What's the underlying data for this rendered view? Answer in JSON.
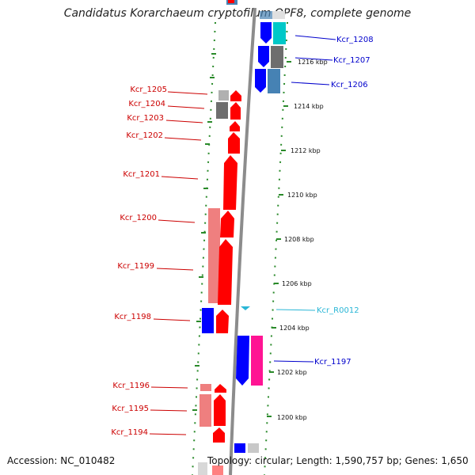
{
  "title": "Candidatus Korarchaeum cryptofilum OPF8, complete genome",
  "accession": "Accession: NC_010482",
  "topology": "Topology: circular; Length: 1,590,757 bp; Genes: 1,650",
  "ticks": [
    "1216 kbp",
    "1214 kbp",
    "1212 kbp",
    "1210 kbp",
    "1208 kbp",
    "1206 kbp",
    "1204 kbp",
    "1202 kbp",
    "1200 kbp"
  ],
  "colors": {
    "red_gene": "#ff0000",
    "pink_gene": "#ef7f7f",
    "blue_gene": "#0000ff",
    "steel_gene": "#4682b4",
    "cyan_gene": "#00c8c8",
    "gray_gene": "#6e6e6e",
    "magenta_gene": "#ff1493",
    "rna_gene": "#29b6d6",
    "left_label": "#cc0000",
    "right_label": "#0000cc",
    "rna_label": "#29b6d6",
    "backbone": "#888888",
    "dots": "#2a8a2a"
  },
  "genes": [
    {
      "name": "Kcr_1208",
      "side": "right",
      "color": "#0000cc"
    },
    {
      "name": "Kcr_1207",
      "side": "right",
      "color": "#0000cc"
    },
    {
      "name": "Kcr_1206",
      "side": "right",
      "color": "#0000cc"
    },
    {
      "name": "Kcr_1205",
      "side": "left",
      "color": "#cc0000"
    },
    {
      "name": "Kcr_1204",
      "side": "left",
      "color": "#cc0000"
    },
    {
      "name": "Kcr_1203",
      "side": "left",
      "color": "#cc0000"
    },
    {
      "name": "Kcr_1202",
      "side": "left",
      "color": "#cc0000"
    },
    {
      "name": "Kcr_1201",
      "side": "left",
      "color": "#cc0000"
    },
    {
      "name": "Kcr_1200",
      "side": "left",
      "color": "#cc0000"
    },
    {
      "name": "Kcr_1199",
      "side": "left",
      "color": "#cc0000"
    },
    {
      "name": "Kcr_R0012",
      "side": "right",
      "color": "#29b6d6"
    },
    {
      "name": "Kcr_1198",
      "side": "left",
      "color": "#cc0000"
    },
    {
      "name": "Kcr_1197",
      "side": "right",
      "color": "#0000cc"
    },
    {
      "name": "Kcr_1196",
      "side": "left",
      "color": "#cc0000"
    },
    {
      "name": "Kcr_1195",
      "side": "left",
      "color": "#cc0000"
    },
    {
      "name": "Kcr_1194",
      "side": "left",
      "color": "#cc0000"
    }
  ]
}
